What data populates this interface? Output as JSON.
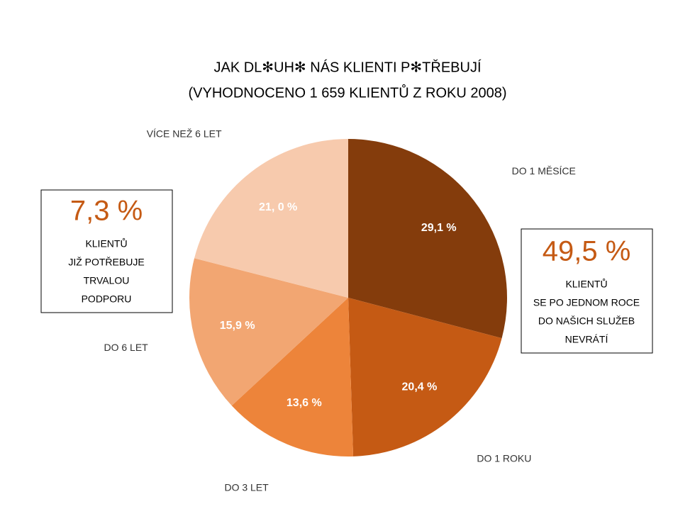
{
  "chart_data": {
    "type": "pie",
    "title": "JAK DL✻UH✻ NÁS KLIENTI P✻TŘEBUJÍ",
    "subtitle": "(VYHODNOCENO 1 659 KLIENTŮ Z ROKU 2008)",
    "categories": [
      "DO 1 MĚSÍCE",
      "DO 1 ROKU",
      "DO 3 LET",
      "DO 6 LET",
      "VÍCE NEŽ 6 LET"
    ],
    "values": [
      29.1,
      20.4,
      13.6,
      15.9,
      21.0
    ],
    "value_labels": [
      "29,1 %",
      "20,4 %",
      "13,6 %",
      "15,9 %",
      "21, 0 %"
    ],
    "colors": [
      "#843c0c",
      "#c55a14",
      "#ed843a",
      "#f2a672",
      "#f7caad"
    ],
    "annotations": [
      {
        "value": "7,3 %",
        "lines": [
          "KLIENTŮ",
          "JIŽ POTŘEBUJE",
          "TRVALOU",
          "PODPORU"
        ]
      },
      {
        "value": "49,5 %",
        "lines": [
          "KLIENTŮ",
          "SE PO JEDNOM ROCE",
          "DO NAŠICH SLUŽEB",
          "NEVRÁTÍ"
        ]
      }
    ]
  }
}
